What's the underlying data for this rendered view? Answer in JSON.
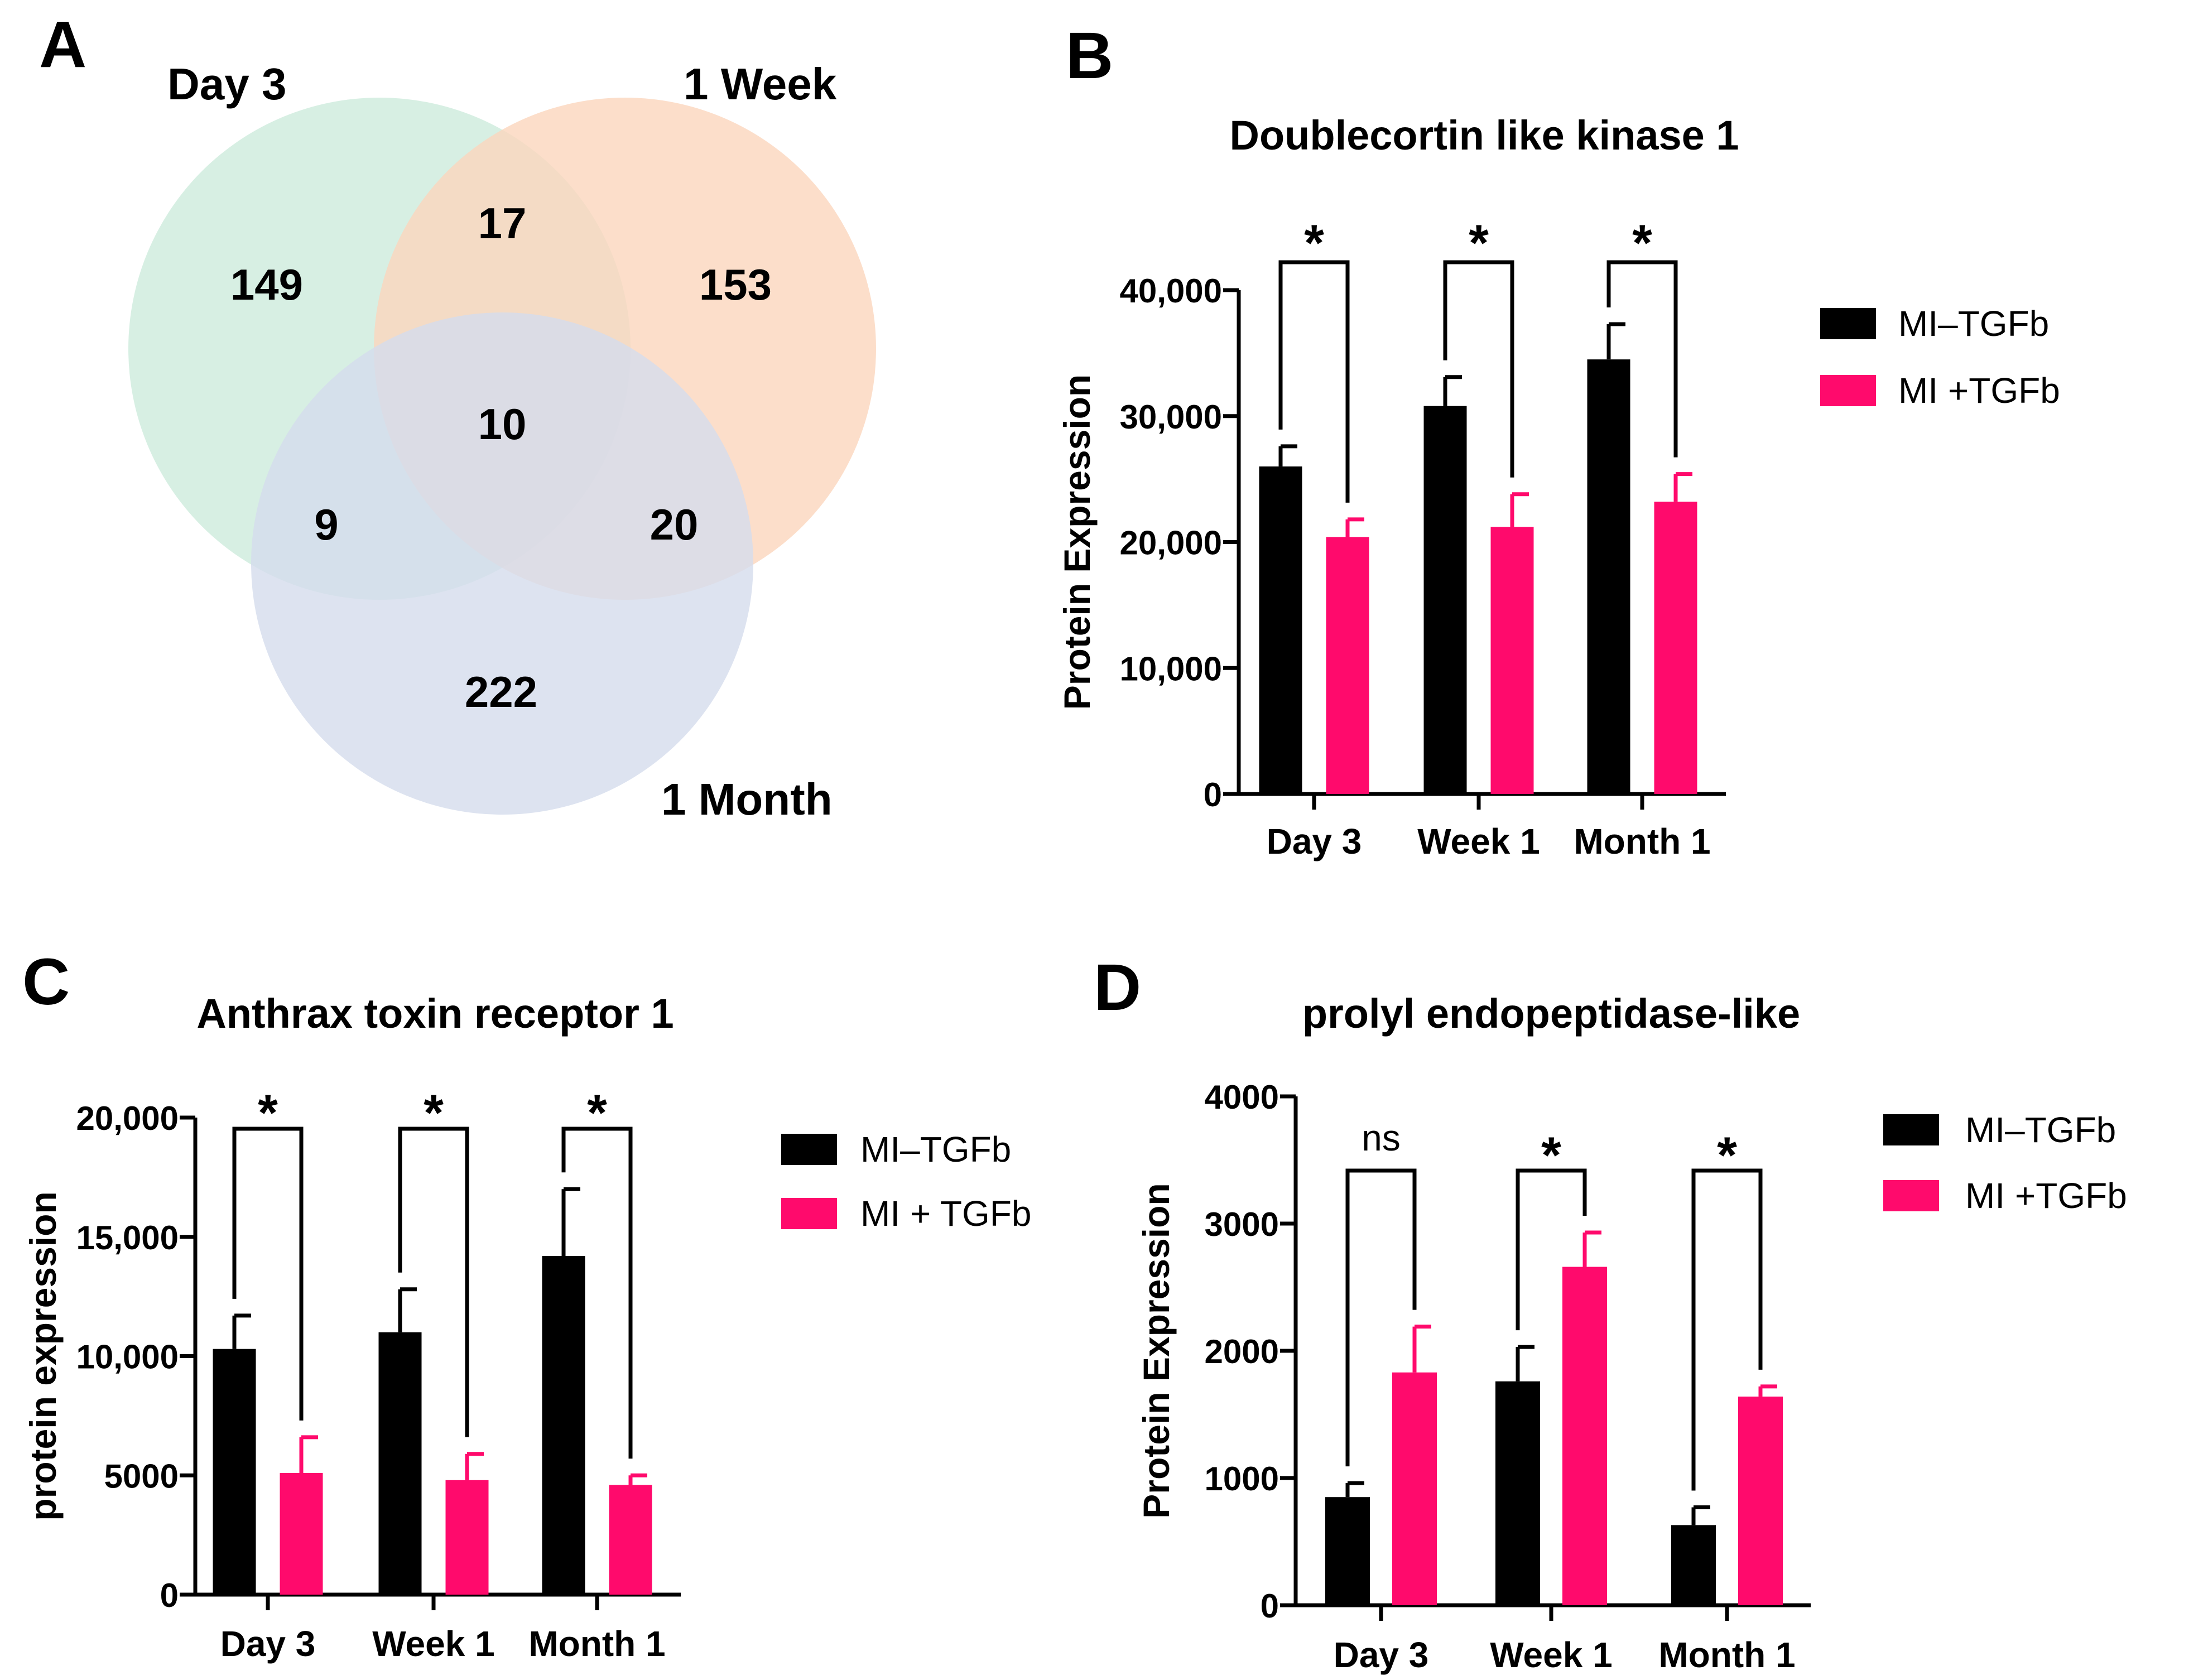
{
  "panels": {
    "a": {
      "letter": "A"
    },
    "b": {
      "letter": "B"
    },
    "c": {
      "letter": "C"
    },
    "d": {
      "letter": "D"
    }
  },
  "venn": {
    "sets": [
      {
        "label": "Day 3",
        "color": "#cdebdc"
      },
      {
        "label": "1 Week",
        "color": "#fbd6bd"
      },
      {
        "label": "1 Month",
        "color": "#d5dcec"
      }
    ],
    "counts": {
      "day3_only": "149",
      "week1_only": "153",
      "month1_only": "222",
      "day3_week1": "17",
      "day3_month1": "9",
      "week1_month1": "20",
      "all": "10"
    }
  },
  "chart_data": [
    {
      "id": "b",
      "type": "bar",
      "title": "Doublecortin like kinase 1",
      "xlabel": "",
      "ylabel": "Protein Expression",
      "categories": [
        "Day 3",
        "Week 1",
        "Month 1"
      ],
      "ylim": [
        0,
        40000
      ],
      "yticks": [
        0,
        10000,
        20000,
        30000,
        40000
      ],
      "ytick_labels": [
        "0",
        "10,000",
        "20,000",
        "30,000",
        "40,000"
      ],
      "series": [
        {
          "name": "MI–TGFb",
          "color": "#000000",
          "values": [
            26000,
            30800,
            34500
          ],
          "errors": [
            1600,
            2300,
            2800
          ]
        },
        {
          "name": "MI +TGFb",
          "color": "#ff0a6c",
          "values": [
            20400,
            21200,
            23200
          ],
          "errors": [
            1400,
            2600,
            2200
          ]
        }
      ],
      "significance": [
        "*",
        "*",
        "*"
      ],
      "legend": "right"
    },
    {
      "id": "c",
      "type": "bar",
      "title": "Anthrax toxin receptor 1",
      "xlabel": "",
      "ylabel": "protein expression",
      "categories": [
        "Day 3",
        "Week 1",
        "Month 1"
      ],
      "ylim": [
        0,
        20000
      ],
      "yticks": [
        0,
        5000,
        10000,
        15000,
        20000
      ],
      "ytick_labels": [
        "0",
        "5000",
        "10,000",
        "15,000",
        "20,000"
      ],
      "series": [
        {
          "name": "MI–TGFb",
          "color": "#000000",
          "values": [
            10300,
            11000,
            14200
          ],
          "errors": [
            1400,
            1800,
            2800
          ]
        },
        {
          "name": "MI + TGFb",
          "color": "#ff0a6c",
          "values": [
            5100,
            4800,
            4600
          ],
          "errors": [
            1500,
            1100,
            400
          ]
        }
      ],
      "significance": [
        "*",
        "*",
        "*"
      ],
      "legend": "right"
    },
    {
      "id": "d",
      "type": "bar",
      "title": "prolyl endopeptidase-like",
      "xlabel": "",
      "ylabel": "Protein Expression",
      "categories": [
        "Day 3",
        "Week 1",
        "Month 1"
      ],
      "ylim": [
        0,
        4000
      ],
      "yticks": [
        0,
        1000,
        2000,
        3000,
        4000
      ],
      "ytick_labels": [
        "0",
        "1000",
        "2000",
        "3000",
        "4000"
      ],
      "series": [
        {
          "name": "MI–TGFb",
          "color": "#000000",
          "values": [
            850,
            1760,
            630
          ],
          "errors": [
            110,
            270,
            140
          ]
        },
        {
          "name": "MI +TGFb",
          "color": "#ff0a6c",
          "values": [
            1830,
            2660,
            1640
          ],
          "errors": [
            360,
            270,
            80
          ]
        }
      ],
      "significance": [
        "ns",
        "*",
        "*"
      ],
      "legend": "right"
    }
  ]
}
